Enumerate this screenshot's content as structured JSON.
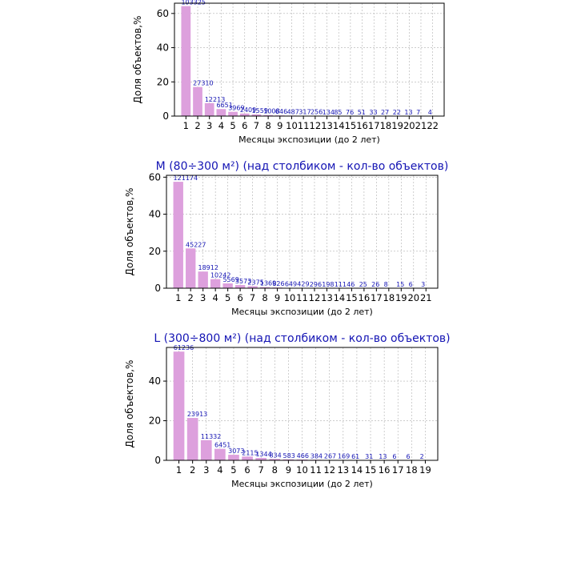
{
  "colors": {
    "bar": "#dda0dd",
    "label": "#1414b4",
    "grid": "#b0b0b0",
    "axis": "#000000",
    "background": "#ffffff"
  },
  "chart_data": [
    {
      "type": "bar",
      "title": "",
      "xlabel": "Месяцы экспозиции (до 2 лет)",
      "ylabel": "Доля объектов,%",
      "ylim": [
        0,
        66
      ],
      "yticks": [
        0,
        20,
        40,
        60
      ],
      "grid": true,
      "categories": [
        "1",
        "2",
        "3",
        "4",
        "5",
        "6",
        "7",
        "8",
        "9",
        "10",
        "11",
        "12",
        "13",
        "14",
        "15",
        "16",
        "17",
        "18",
        "19",
        "20",
        "21",
        "22"
      ],
      "values": [
        64.3,
        17.0,
        7.6,
        4.1,
        2.5,
        1.5,
        1.0,
        0.6,
        0.4,
        0.3,
        0.2,
        0.2,
        0.1,
        0.1,
        0.05,
        0.03,
        0.02,
        0.02,
        0.01,
        0.01,
        0.004,
        0.002
      ],
      "labels": [
        "103325",
        "27310",
        "12213",
        "6651",
        "3969",
        "2409",
        "1559",
        "1008",
        "646",
        "487",
        "317",
        "256",
        "134",
        "85",
        "76",
        "51",
        "33",
        "27",
        "22",
        "13",
        "7",
        "4"
      ]
    },
    {
      "type": "bar",
      "title": "M (80÷300 м²) (над столбиком - кол-во объектов)",
      "xlabel": "Месяцы экспозиции (до 2 лет)",
      "ylabel": "Доля объектов,%",
      "ylim": [
        0,
        61
      ],
      "yticks": [
        0,
        20,
        40,
        60
      ],
      "grid": true,
      "categories": [
        "1",
        "2",
        "3",
        "4",
        "5",
        "6",
        "7",
        "8",
        "9",
        "10",
        "11",
        "12",
        "13",
        "14",
        "15",
        "16",
        "17",
        "18",
        "19",
        "20",
        "21"
      ],
      "values": [
        57.5,
        21.5,
        9.0,
        4.9,
        2.6,
        1.7,
        1.1,
        0.6,
        0.4,
        0.2,
        0.2,
        0.1,
        0.1,
        0.05,
        0.02,
        0.01,
        0.01,
        0.004,
        0.01,
        0.003,
        0.001
      ],
      "labels": [
        "121174",
        "45227",
        "18912",
        "10242",
        "5569",
        "3573",
        "2375",
        "1369",
        "826",
        "649",
        "429",
        "296",
        "198",
        "111",
        "46",
        "25",
        "26",
        "8",
        "15",
        "6",
        "3"
      ]
    },
    {
      "type": "bar",
      "title": "L (300÷800 м²) (над столбиком - кол-во объектов)",
      "xlabel": "Месяцы экспозиции (до 2 лет)",
      "ylabel": "Доля объектов,%",
      "ylim": [
        0,
        57
      ],
      "yticks": [
        0,
        20,
        40
      ],
      "grid": true,
      "categories": [
        "1",
        "2",
        "3",
        "4",
        "5",
        "6",
        "7",
        "8",
        "9",
        "10",
        "11",
        "12",
        "13",
        "14",
        "15",
        "16",
        "17",
        "18",
        "19"
      ],
      "values": [
        54.9,
        21.4,
        10.2,
        5.8,
        2.8,
        1.9,
        1.2,
        0.7,
        0.5,
        0.4,
        0.3,
        0.2,
        0.15,
        0.05,
        0.03,
        0.01,
        0.005,
        0.005,
        0.002
      ],
      "labels": [
        "61236",
        "23913",
        "11332",
        "6451",
        "3073",
        "2115",
        "1344",
        "834",
        "583",
        "466",
        "384",
        "267",
        "169",
        "61",
        "31",
        "13",
        "6",
        "6",
        "2"
      ]
    }
  ]
}
